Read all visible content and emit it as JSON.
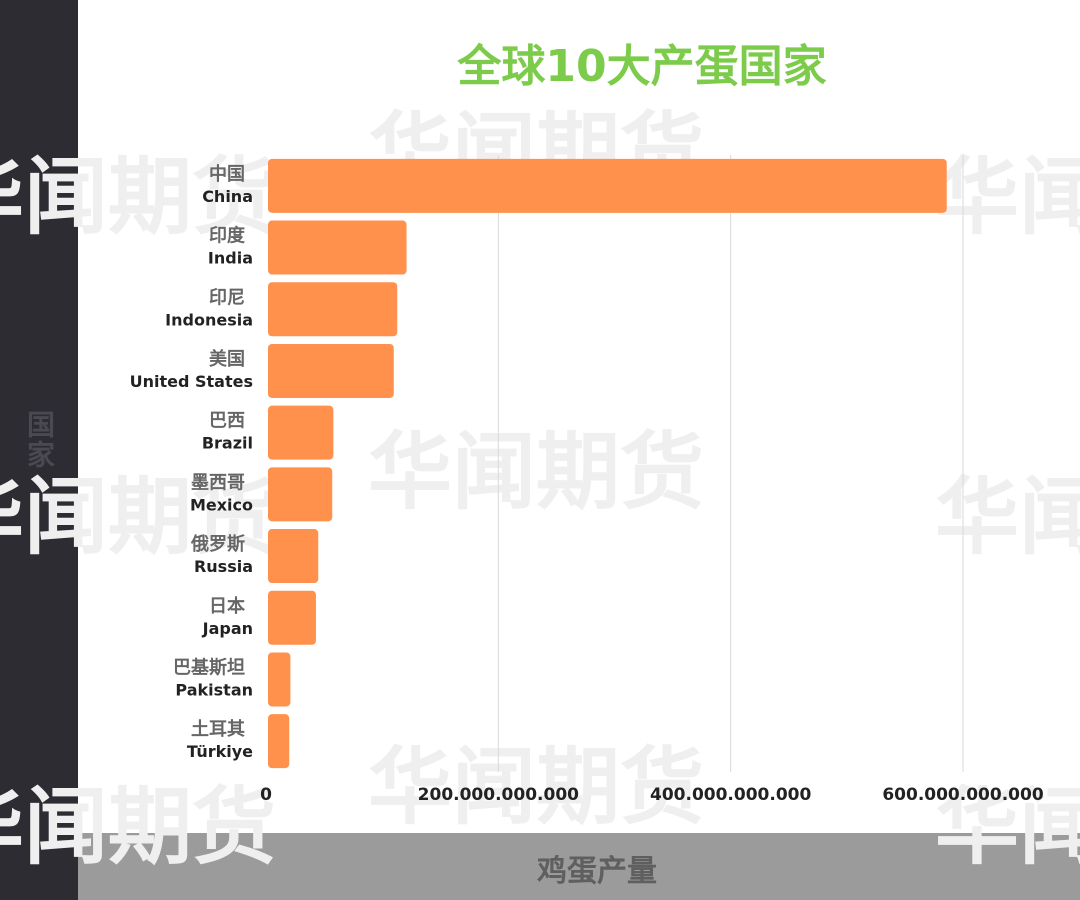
{
  "watermark": "华闻期货",
  "chart_data": {
    "type": "bar",
    "orientation": "horizontal",
    "title": "全球10大产蛋国家",
    "xlabel": "鸡蛋产量",
    "ylabel": "国家",
    "categories": [
      {
        "cn": "中国",
        "en": "China"
      },
      {
        "cn": "印度",
        "en": "India"
      },
      {
        "cn": "印尼",
        "en": "Indonesia"
      },
      {
        "cn": "美国",
        "en": "United States"
      },
      {
        "cn": "巴西",
        "en": "Brazil"
      },
      {
        "cn": "墨西哥",
        "en": "Mexico"
      },
      {
        "cn": "俄罗斯",
        "en": "Russia"
      },
      {
        "cn": "日本",
        "en": "Japan"
      },
      {
        "cn": "巴基斯坦",
        "en": "Pakistan"
      },
      {
        "cn": "土耳其",
        "en": "Türkiye"
      }
    ],
    "values": [
      586000000000,
      121000000000,
      113000000000,
      110000000000,
      58000000000,
      57000000000,
      45000000000,
      43000000000,
      21000000000,
      20000000000
    ],
    "xlim": [
      0,
      700000000000
    ],
    "xticks": [
      0,
      200000000000,
      400000000000,
      600000000000
    ],
    "xtick_labels": [
      "0",
      "200.000.000.000",
      "400.000.000.000",
      "600.000.000.000"
    ],
    "grid": true,
    "legend": "none",
    "colors": {
      "bar": "#ff914d",
      "title": "#7dcb4b",
      "sidebar": "#2e2c33",
      "bottom_band": "#9b9b9b",
      "grid": "#d9d9d9"
    }
  }
}
